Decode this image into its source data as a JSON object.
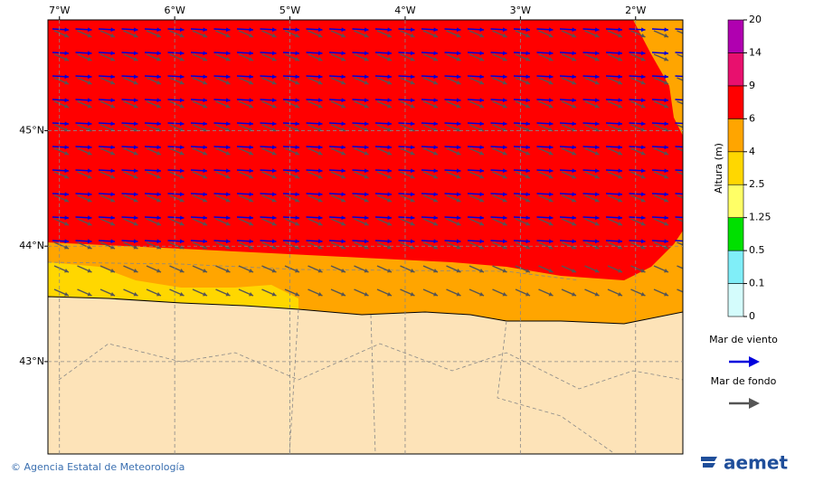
{
  "map": {
    "lonlim": [
      -7.1,
      -1.59
    ],
    "latlim": [
      42.2,
      45.96
    ],
    "lon_ticks": [
      {
        "value": -7,
        "label": "7°W"
      },
      {
        "value": -6,
        "label": "6°W"
      },
      {
        "value": -5,
        "label": "5°W"
      },
      {
        "value": -4,
        "label": "4°W"
      },
      {
        "value": -3,
        "label": "3°W"
      },
      {
        "value": -2,
        "label": "2°W"
      }
    ],
    "lat_ticks": [
      {
        "value": 45,
        "label": "45°N"
      },
      {
        "value": 44,
        "label": "44°N"
      },
      {
        "value": 43,
        "label": "43°N"
      }
    ],
    "colorbar": {
      "title": "Altura (m)",
      "levels": [
        0,
        0.1,
        0.5,
        1.25,
        2.5,
        4,
        6,
        9,
        14,
        20
      ],
      "colors": [
        "#d4fcfc",
        "#80eef8",
        "#00e000",
        "#ffff66",
        "#ffd700",
        "#ffa500",
        "#ff0000",
        "#e8106e",
        "#b000b0"
      ]
    },
    "legend": [
      {
        "label": "Mar de viento",
        "color": "#0000dd"
      },
      {
        "label": "Mar de fondo",
        "color": "#555555"
      }
    ],
    "footer": {
      "credit": "© Agencia Estatal de Meteorología",
      "logo": "aemet"
    }
  }
}
